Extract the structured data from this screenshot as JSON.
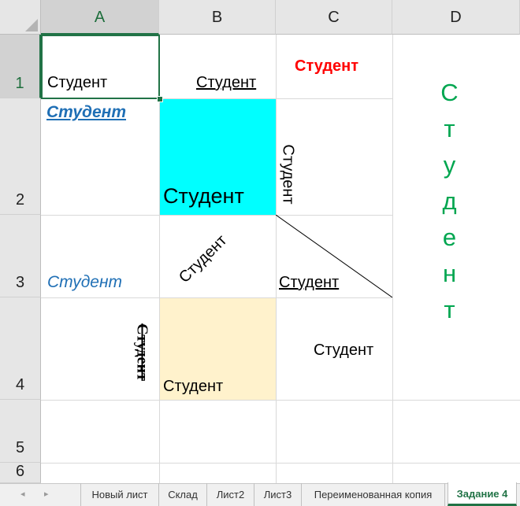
{
  "columns": [
    "A",
    "B",
    "C",
    "D"
  ],
  "rows": [
    "1",
    "2",
    "3",
    "4",
    "5",
    "6"
  ],
  "cells": {
    "a1": "Студент",
    "b1": "Студент",
    "c1": "Студент",
    "a2": "Студент",
    "b2": "Студент",
    "c2": "Студент",
    "a3": "Студент",
    "b3": "Студент",
    "c3": "Студент",
    "a4": "Студент",
    "b4": "Студент",
    "c4": "Студент",
    "d_letters": [
      "С",
      "т",
      "у",
      "д",
      "е",
      "н",
      "т"
    ]
  },
  "colors": {
    "red": "#ff0000",
    "blue": "#1f6fb5",
    "cyan": "#00ffff",
    "cream": "#fff2cc",
    "green": "#00a650",
    "excel_green": "#217346"
  },
  "tabs": {
    "nav_prev": "◂",
    "nav_next": "▸",
    "items": [
      "Новый лист",
      "Склад",
      "Лист2",
      "Лист3",
      "Переименованная копия",
      "Задание 4"
    ],
    "active": "Задание 4"
  }
}
